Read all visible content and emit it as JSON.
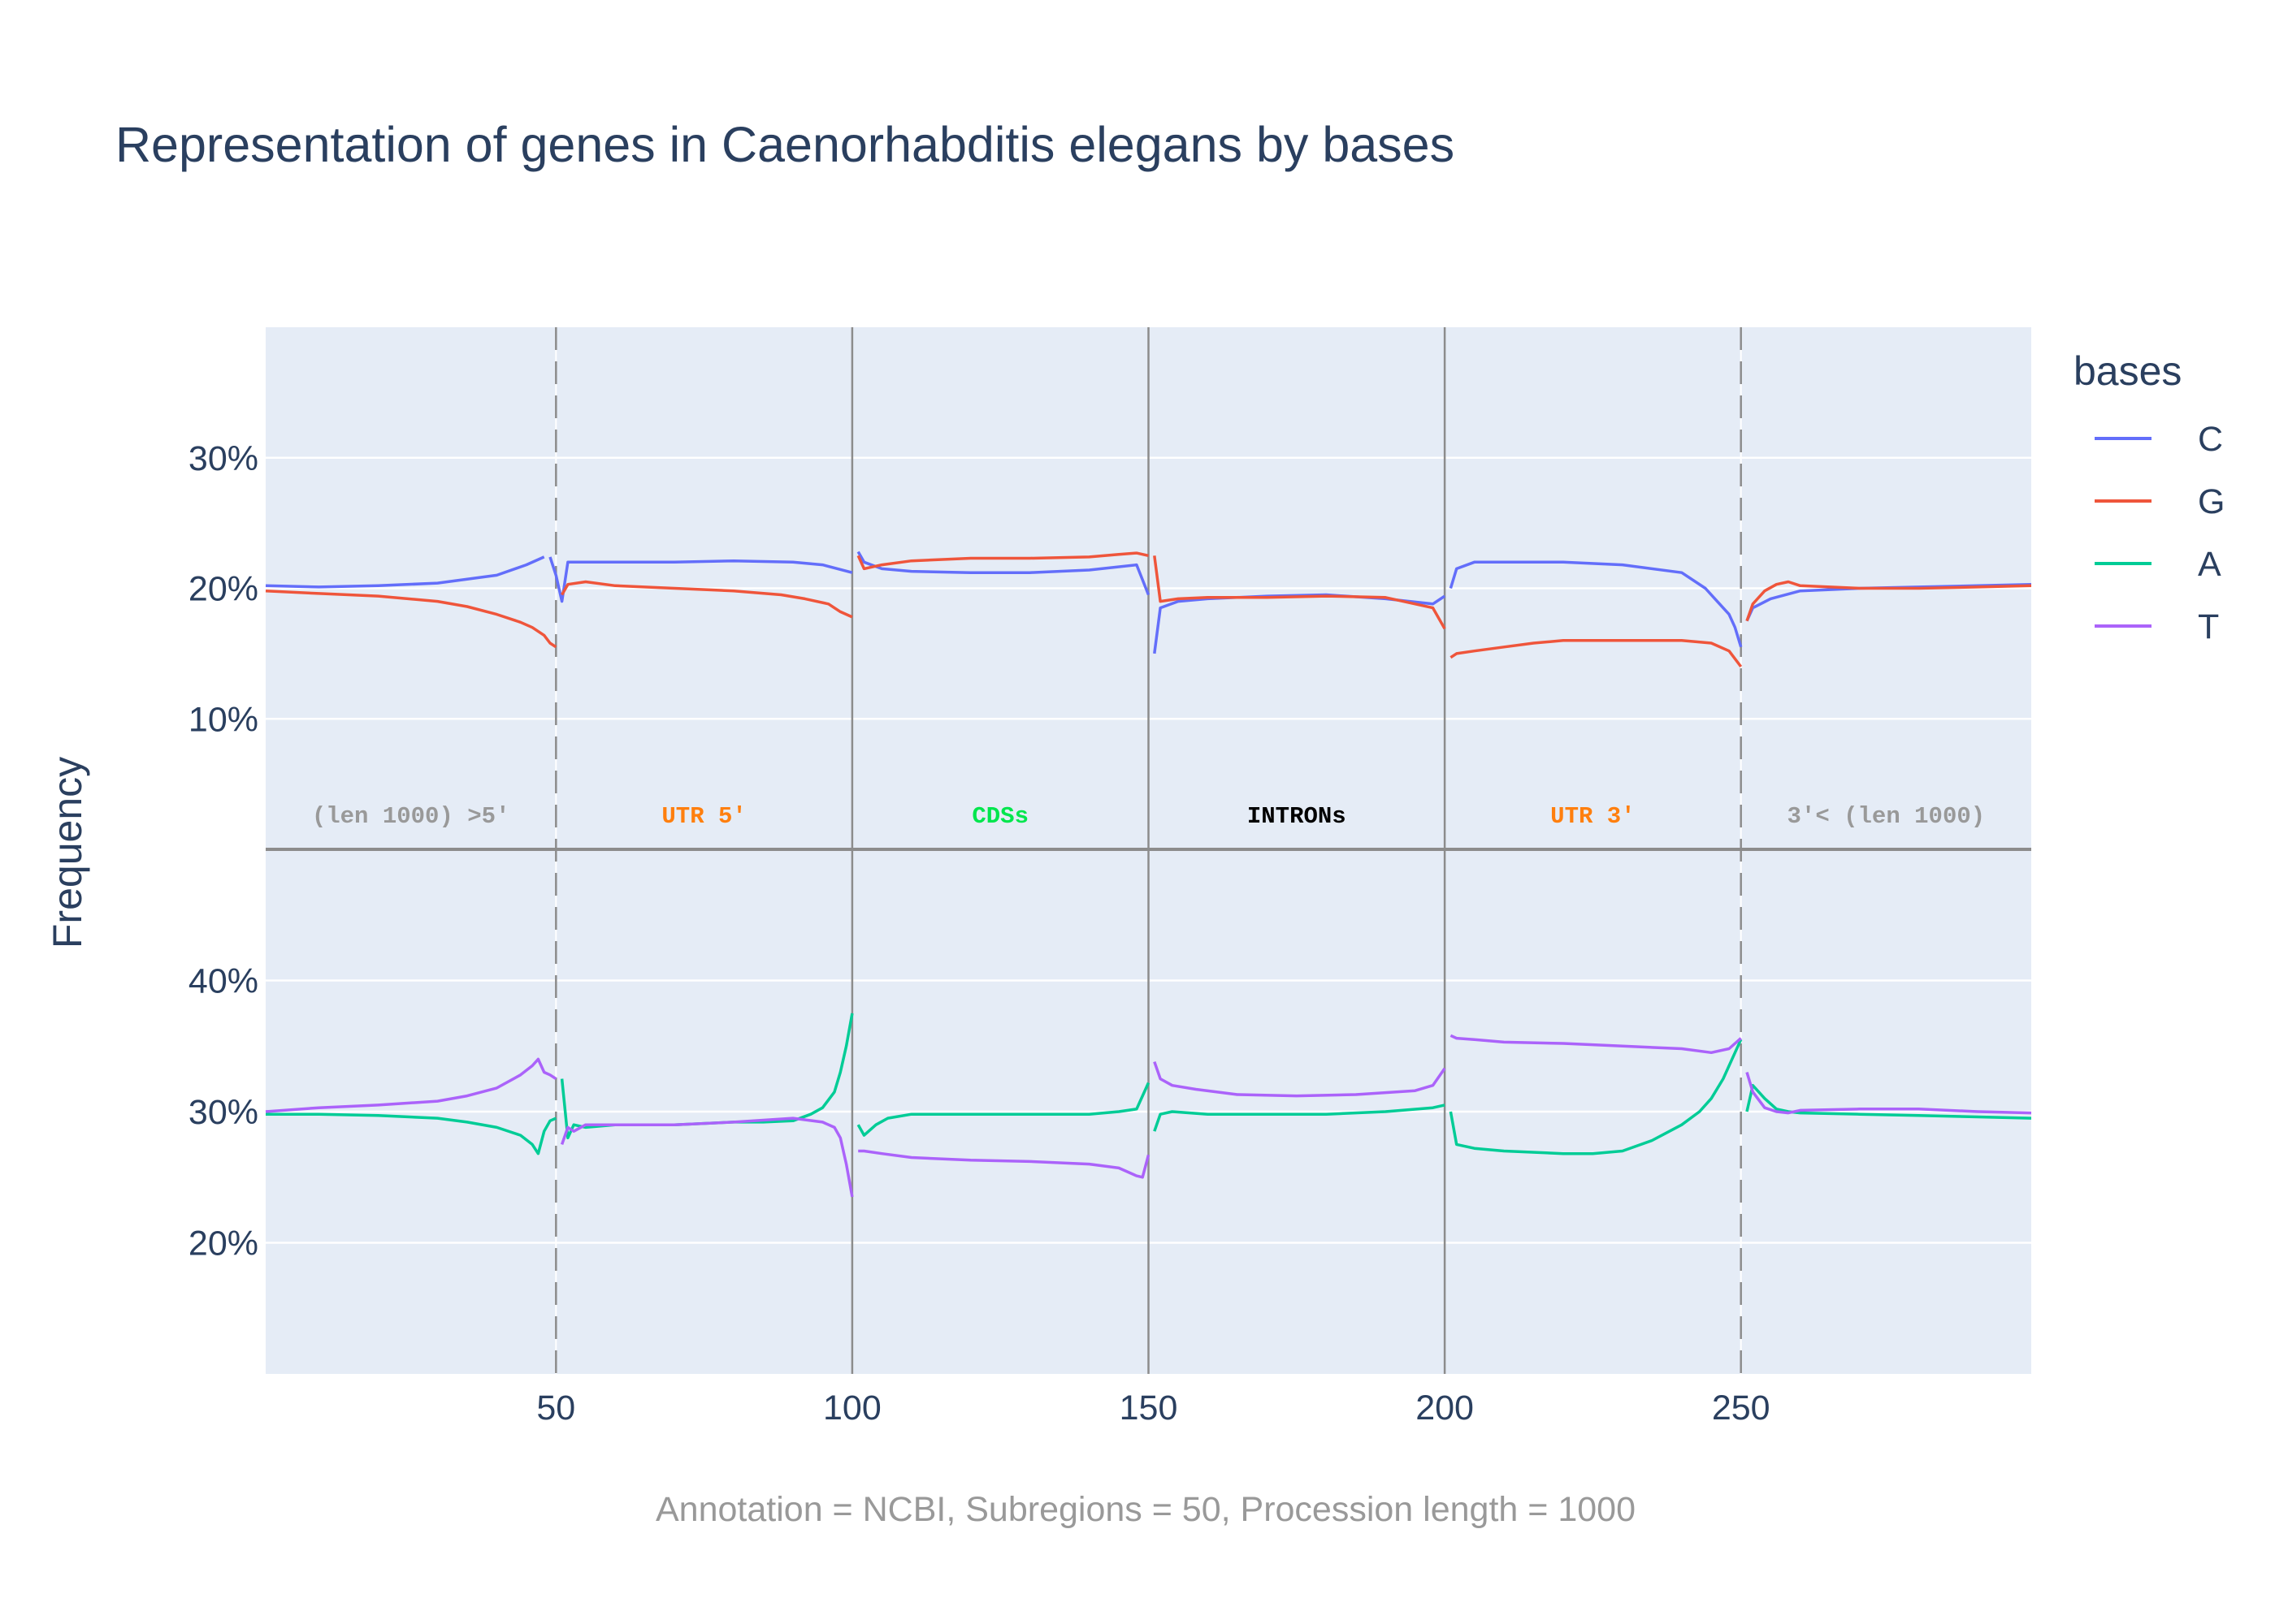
{
  "title": "Representation of genes in Caenorhabditis elegans by bases",
  "footer": "Annotation = NCBI, Subregions = 50, Procession length = 1000",
  "colors": {
    "C": "#636efa",
    "G": "#ef553b",
    "A": "#00cc96",
    "T": "#ab63fa"
  },
  "chart_data": {
    "type": "line",
    "ylabel": "Frequency",
    "legend_title": "bases",
    "legend_placement": "top-right",
    "legend": [
      "C",
      "G",
      "A",
      "T"
    ],
    "grid": true,
    "xlim": [
      1,
      299
    ],
    "x_ticks": [
      50,
      100,
      150,
      200,
      250
    ],
    "region_boundaries": [
      {
        "x": 50,
        "style": "dashed"
      },
      {
        "x": 100,
        "style": "solid"
      },
      {
        "x": 150,
        "style": "solid"
      },
      {
        "x": 200,
        "style": "solid"
      },
      {
        "x": 250,
        "style": "dashed"
      }
    ],
    "regions": [
      {
        "label": "(len 1000) >5'",
        "x_range": [
          1,
          50
        ],
        "color": "#999999"
      },
      {
        "label": "UTR 5'",
        "x_range": [
          50,
          100
        ],
        "color": "#ff7f0e"
      },
      {
        "label": "CDSs",
        "x_range": [
          100,
          150
        ],
        "color": "#00e64d"
      },
      {
        "label": "INTRONs",
        "x_range": [
          150,
          200
        ],
        "color": "#000000"
      },
      {
        "label": "UTR 3'",
        "x_range": [
          200,
          250
        ],
        "color": "#ff7f0e"
      },
      {
        "label": "3'< (len 1000)",
        "x_range": [
          250,
          299
        ],
        "color": "#999999"
      }
    ],
    "panels": [
      {
        "ylim": [
          0,
          40
        ],
        "y_ticks": [
          10,
          20,
          30
        ],
        "tick_suffix": "%",
        "series": [
          {
            "name": "C",
            "segments": [
              {
                "x": [
                  1,
                  10,
                  20,
                  30,
                  40,
                  45,
                  48
                ],
                "y": [
                  20.2,
                  20.1,
                  20.2,
                  20.4,
                  21.0,
                  21.8,
                  22.4
                ]
              },
              {
                "x": [
                  49,
                  50,
                  51,
                  52,
                  60,
                  70,
                  80,
                  90,
                  95,
                  100
                ],
                "y": [
                  22.4,
                  21.0,
                  19.0,
                  22.0,
                  22.0,
                  22.0,
                  22.1,
                  22.0,
                  21.8,
                  21.2
                ]
              },
              {
                "x": [
                  101,
                  102,
                  105,
                  110,
                  120,
                  130,
                  140,
                  148,
                  150
                ],
                "y": [
                  22.8,
                  22.0,
                  21.5,
                  21.3,
                  21.2,
                  21.2,
                  21.4,
                  21.8,
                  19.5
                ]
              },
              {
                "x": [
                  151,
                  152,
                  155,
                  160,
                  170,
                  180,
                  190,
                  198,
                  200
                ],
                "y": [
                  15.0,
                  18.5,
                  19.0,
                  19.2,
                  19.4,
                  19.5,
                  19.2,
                  18.8,
                  19.4
                ]
              },
              {
                "x": [
                  201,
                  202,
                  205,
                  210,
                  220,
                  230,
                  240,
                  244,
                  246,
                  248,
                  249,
                  250
                ],
                "y": [
                  20.0,
                  21.5,
                  22.0,
                  22.0,
                  22.0,
                  21.8,
                  21.2,
                  20.0,
                  19.0,
                  18.0,
                  17.0,
                  15.5
                ]
              },
              {
                "x": [
                  251,
                  252,
                  255,
                  260,
                  270,
                  280,
                  290,
                  299
                ],
                "y": [
                  17.5,
                  18.5,
                  19.2,
                  19.8,
                  20.0,
                  20.1,
                  20.2,
                  20.3
                ]
              }
            ]
          },
          {
            "name": "G",
            "segments": [
              {
                "x": [
                  1,
                  10,
                  20,
                  30,
                  35,
                  40,
                  44,
                  46,
                  48,
                  49,
                  50
                ],
                "y": [
                  19.8,
                  19.6,
                  19.4,
                  19.0,
                  18.6,
                  18.0,
                  17.4,
                  17.0,
                  16.4,
                  15.8,
                  15.5
                ]
              },
              {
                "x": [
                  51,
                  52,
                  55,
                  60,
                  70,
                  80,
                  88,
                  92,
                  96,
                  98,
                  100
                ],
                "y": [
                  19.5,
                  20.3,
                  20.5,
                  20.2,
                  20.0,
                  19.8,
                  19.5,
                  19.2,
                  18.8,
                  18.2,
                  17.8
                ]
              },
              {
                "x": [
                  101,
                  102,
                  105,
                  110,
                  120,
                  130,
                  140,
                  145,
                  148,
                  150
                ],
                "y": [
                  22.5,
                  21.5,
                  21.8,
                  22.1,
                  22.3,
                  22.3,
                  22.4,
                  22.6,
                  22.7,
                  22.5
                ]
              },
              {
                "x": [
                  151,
                  152,
                  155,
                  160,
                  170,
                  180,
                  190,
                  198,
                  200
                ],
                "y": [
                  22.5,
                  19.0,
                  19.2,
                  19.3,
                  19.3,
                  19.4,
                  19.3,
                  18.5,
                  16.9
                ]
              },
              {
                "x": [
                  201,
                  202,
                  205,
                  210,
                  215,
                  220,
                  230,
                  240,
                  245,
                  248,
                  250
                ],
                "y": [
                  14.7,
                  15.0,
                  15.2,
                  15.5,
                  15.8,
                  16.0,
                  16.0,
                  16.0,
                  15.8,
                  15.2,
                  14.0
                ]
              },
              {
                "x": [
                  251,
                  252,
                  254,
                  256,
                  258,
                  260,
                  270,
                  280,
                  290,
                  299
                ],
                "y": [
                  17.5,
                  18.8,
                  19.8,
                  20.3,
                  20.5,
                  20.2,
                  20.0,
                  20.0,
                  20.1,
                  20.2
                ]
              }
            ]
          }
        ]
      },
      {
        "ylim": [
          10,
          50
        ],
        "y_ticks": [
          20,
          30,
          40
        ],
        "tick_suffix": "%",
        "series": [
          {
            "name": "A",
            "segments": [
              {
                "x": [
                  1,
                  10,
                  20,
                  30,
                  35,
                  40,
                  44,
                  46,
                  47,
                  48,
                  49,
                  50
                ],
                "y": [
                  29.8,
                  29.8,
                  29.7,
                  29.5,
                  29.2,
                  28.8,
                  28.2,
                  27.5,
                  26.8,
                  28.5,
                  29.3,
                  29.5
                ]
              },
              {
                "x": [
                  51,
                  52,
                  53,
                  55,
                  60,
                  70,
                  80,
                  85,
                  90,
                  93,
                  95,
                  97,
                  98,
                  99,
                  100
                ],
                "y": [
                  32.5,
                  28.0,
                  29.0,
                  28.8,
                  29.0,
                  29.0,
                  29.2,
                  29.2,
                  29.3,
                  29.8,
                  30.3,
                  31.5,
                  33.0,
                  35.0,
                  37.5
                ]
              },
              {
                "x": [
                  101,
                  102,
                  104,
                  106,
                  110,
                  120,
                  130,
                  140,
                  145,
                  148,
                  150
                ],
                "y": [
                  29.0,
                  28.2,
                  29.0,
                  29.5,
                  29.8,
                  29.8,
                  29.8,
                  29.8,
                  30.0,
                  30.2,
                  32.2
                ]
              },
              {
                "x": [
                  151,
                  152,
                  154,
                  160,
                  170,
                  180,
                  190,
                  198,
                  200
                ],
                "y": [
                  28.5,
                  29.8,
                  30.0,
                  29.8,
                  29.8,
                  29.8,
                  30.0,
                  30.3,
                  30.5
                ]
              },
              {
                "x": [
                  201,
                  202,
                  205,
                  210,
                  220,
                  225,
                  230,
                  235,
                  240,
                  243,
                  245,
                  247,
                  249,
                  250
                ],
                "y": [
                  30.0,
                  27.5,
                  27.2,
                  27.0,
                  26.8,
                  26.8,
                  27.0,
                  27.8,
                  29.0,
                  30.0,
                  31.0,
                  32.5,
                  34.5,
                  35.5
                ]
              },
              {
                "x": [
                  251,
                  252,
                  254,
                  256,
                  258,
                  260,
                  270,
                  280,
                  290,
                  299
                ],
                "y": [
                  30.0,
                  32.0,
                  31.0,
                  30.2,
                  30.0,
                  29.9,
                  29.8,
                  29.7,
                  29.6,
                  29.5
                ]
              }
            ]
          },
          {
            "name": "T",
            "segments": [
              {
                "x": [
                  1,
                  10,
                  20,
                  30,
                  35,
                  40,
                  44,
                  46,
                  47,
                  48,
                  49,
                  50
                ],
                "y": [
                  30.0,
                  30.3,
                  30.5,
                  30.8,
                  31.2,
                  31.8,
                  32.8,
                  33.5,
                  34.0,
                  33.0,
                  32.8,
                  32.5
                ]
              },
              {
                "x": [
                  51,
                  52,
                  53,
                  55,
                  60,
                  70,
                  80,
                  90,
                  95,
                  97,
                  98,
                  99,
                  100
                ],
                "y": [
                  27.5,
                  28.8,
                  28.5,
                  29.0,
                  29.0,
                  29.0,
                  29.2,
                  29.5,
                  29.2,
                  28.8,
                  28.0,
                  26.0,
                  23.5
                ]
              },
              {
                "x": [
                  101,
                  102,
                  105,
                  110,
                  120,
                  130,
                  140,
                  145,
                  148,
                  149,
                  150
                ],
                "y": [
                  27.0,
                  27.0,
                  26.8,
                  26.5,
                  26.3,
                  26.2,
                  26.0,
                  25.7,
                  25.1,
                  25.0,
                  26.7
                ]
              },
              {
                "x": [
                  151,
                  152,
                  154,
                  158,
                  165,
                  175,
                  185,
                  195,
                  198,
                  200
                ],
                "y": [
                  33.8,
                  32.5,
                  32.0,
                  31.7,
                  31.3,
                  31.2,
                  31.3,
                  31.6,
                  32.0,
                  33.3
                ]
              },
              {
                "x": [
                  201,
                  202,
                  205,
                  210,
                  220,
                  230,
                  240,
                  245,
                  248,
                  250
                ],
                "y": [
                  35.8,
                  35.6,
                  35.5,
                  35.3,
                  35.2,
                  35.0,
                  34.8,
                  34.5,
                  34.8,
                  35.6
                ]
              },
              {
                "x": [
                  251,
                  252,
                  254,
                  256,
                  258,
                  260,
                  270,
                  280,
                  290,
                  299
                ],
                "y": [
                  33.0,
                  31.5,
                  30.3,
                  30.0,
                  29.9,
                  30.1,
                  30.2,
                  30.2,
                  30.0,
                  29.9
                ]
              }
            ]
          }
        ]
      }
    ]
  }
}
